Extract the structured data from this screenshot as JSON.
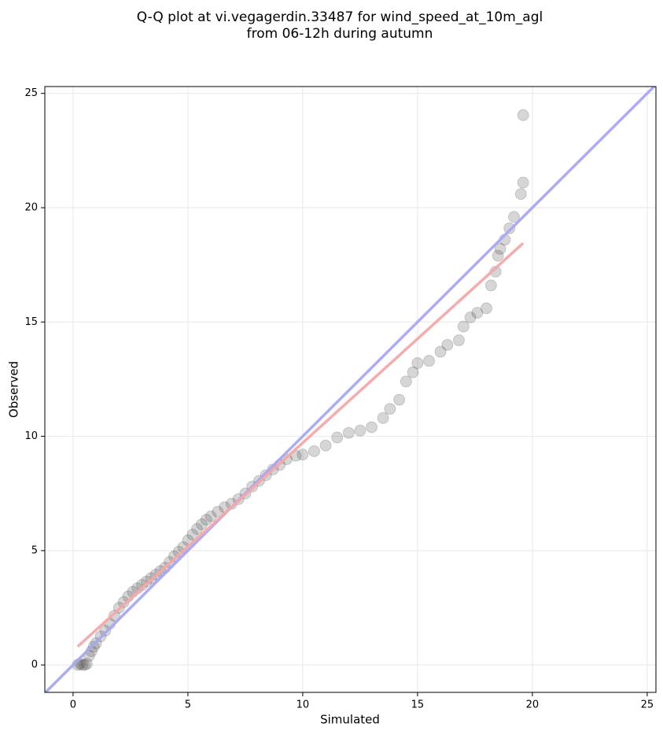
{
  "chart_data": {
    "type": "scatter",
    "title": [
      "Q-Q plot at vi.vegagerdin.33487 for wind_speed_at_10m_agl",
      "from 06-12h during autumn"
    ],
    "x_label": "Simulated",
    "y_label": "Observed",
    "xlim": [
      -1.23,
      25.38
    ],
    "ylim": [
      -1.2,
      25.3
    ],
    "xticks": [
      0,
      5,
      10,
      15,
      20,
      25
    ],
    "yticks": [
      0,
      5,
      10,
      15,
      20,
      25
    ],
    "grid": true,
    "color": "#444444",
    "alpha": 0.22,
    "x": [
      0.2,
      0.3,
      0.4,
      0.5,
      0.6,
      0.7,
      0.8,
      0.9,
      1.0,
      1.2,
      1.4,
      1.6,
      1.8,
      2.0,
      2.2,
      2.4,
      2.6,
      2.8,
      3.0,
      3.2,
      3.4,
      3.6,
      3.8,
      4.0,
      4.2,
      4.4,
      4.6,
      4.8,
      5.0,
      5.2,
      5.4,
      5.6,
      5.8,
      6.0,
      6.3,
      6.6,
      6.9,
      7.2,
      7.5,
      7.8,
      8.1,
      8.4,
      8.7,
      9.0,
      9.3,
      9.7,
      10.0,
      10.5,
      11.0,
      11.5,
      12.0,
      12.5,
      13.0,
      13.5,
      13.8,
      14.2,
      14.5,
      14.8,
      15.0,
      15.5,
      16.0,
      16.3,
      16.8,
      17.0,
      17.3,
      17.6,
      18.0,
      18.2,
      18.4,
      18.5,
      18.6,
      18.8,
      19.0,
      19.2,
      19.5,
      19.6,
      19.6
    ],
    "values": [
      0.0,
      0.05,
      0.0,
      0.0,
      0.05,
      0.4,
      0.6,
      0.8,
      0.95,
      1.25,
      1.5,
      1.8,
      2.15,
      2.5,
      2.75,
      3.0,
      3.2,
      3.35,
      3.5,
      3.65,
      3.8,
      3.95,
      4.1,
      4.25,
      4.5,
      4.75,
      4.95,
      5.15,
      5.45,
      5.7,
      5.95,
      6.15,
      6.35,
      6.5,
      6.7,
      6.9,
      7.05,
      7.25,
      7.5,
      7.8,
      8.05,
      8.3,
      8.55,
      8.75,
      9.0,
      9.15,
      9.2,
      9.35,
      9.6,
      9.95,
      10.15,
      10.25,
      10.4,
      10.8,
      11.2,
      11.6,
      12.4,
      12.8,
      13.2,
      13.3,
      13.7,
      14.0,
      14.2,
      14.8,
      15.2,
      15.4,
      15.6,
      16.6,
      17.2,
      17.9,
      18.2,
      18.6,
      19.1,
      19.6,
      20.6,
      21.1,
      24.05
    ],
    "identity_line": {
      "color": "#a8a8f5"
    },
    "fit_line": {
      "x": [
        0.2,
        19.6
      ],
      "y": [
        0.8,
        18.45
      ],
      "color": "#f5a8a8"
    }
  }
}
